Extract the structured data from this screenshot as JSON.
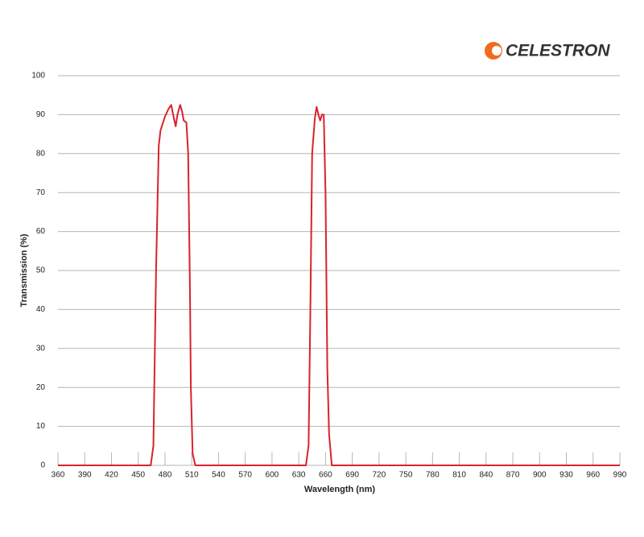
{
  "chart_data": {
    "type": "line",
    "logo": "CELESTRON",
    "xlabel": "Wavelength (nm)",
    "ylabel": "Transmission (%)",
    "x": [
      360,
      464,
      467,
      470,
      473,
      475,
      480,
      484,
      487,
      490,
      492,
      494,
      497,
      499,
      501,
      504,
      506,
      508,
      509,
      511,
      514,
      638,
      641,
      643,
      645,
      648,
      650,
      652,
      654,
      656,
      658,
      660,
      662,
      664,
      667,
      990
    ],
    "series": [
      {
        "name": "Transmission",
        "color": "#d9232e",
        "values": [
          0,
          0,
          5,
          50,
          82,
          86,
          89.5,
          91.5,
          92.5,
          89,
          87,
          90,
          92.5,
          91,
          88.5,
          88,
          80,
          45,
          20,
          3,
          0,
          0,
          5,
          40,
          80,
          89,
          92,
          90,
          88.5,
          90,
          90,
          70,
          25,
          8,
          0,
          0
        ]
      }
    ],
    "xlim": [
      360,
      990
    ],
    "xticks": [
      360,
      390,
      420,
      450,
      480,
      510,
      540,
      570,
      600,
      630,
      660,
      690,
      720,
      750,
      780,
      810,
      840,
      870,
      900,
      930,
      960,
      990
    ],
    "ylim": [
      0,
      100
    ],
    "yticks": [
      0,
      10,
      20,
      30,
      40,
      50,
      60,
      70,
      80,
      90,
      100
    ],
    "grid": true
  }
}
